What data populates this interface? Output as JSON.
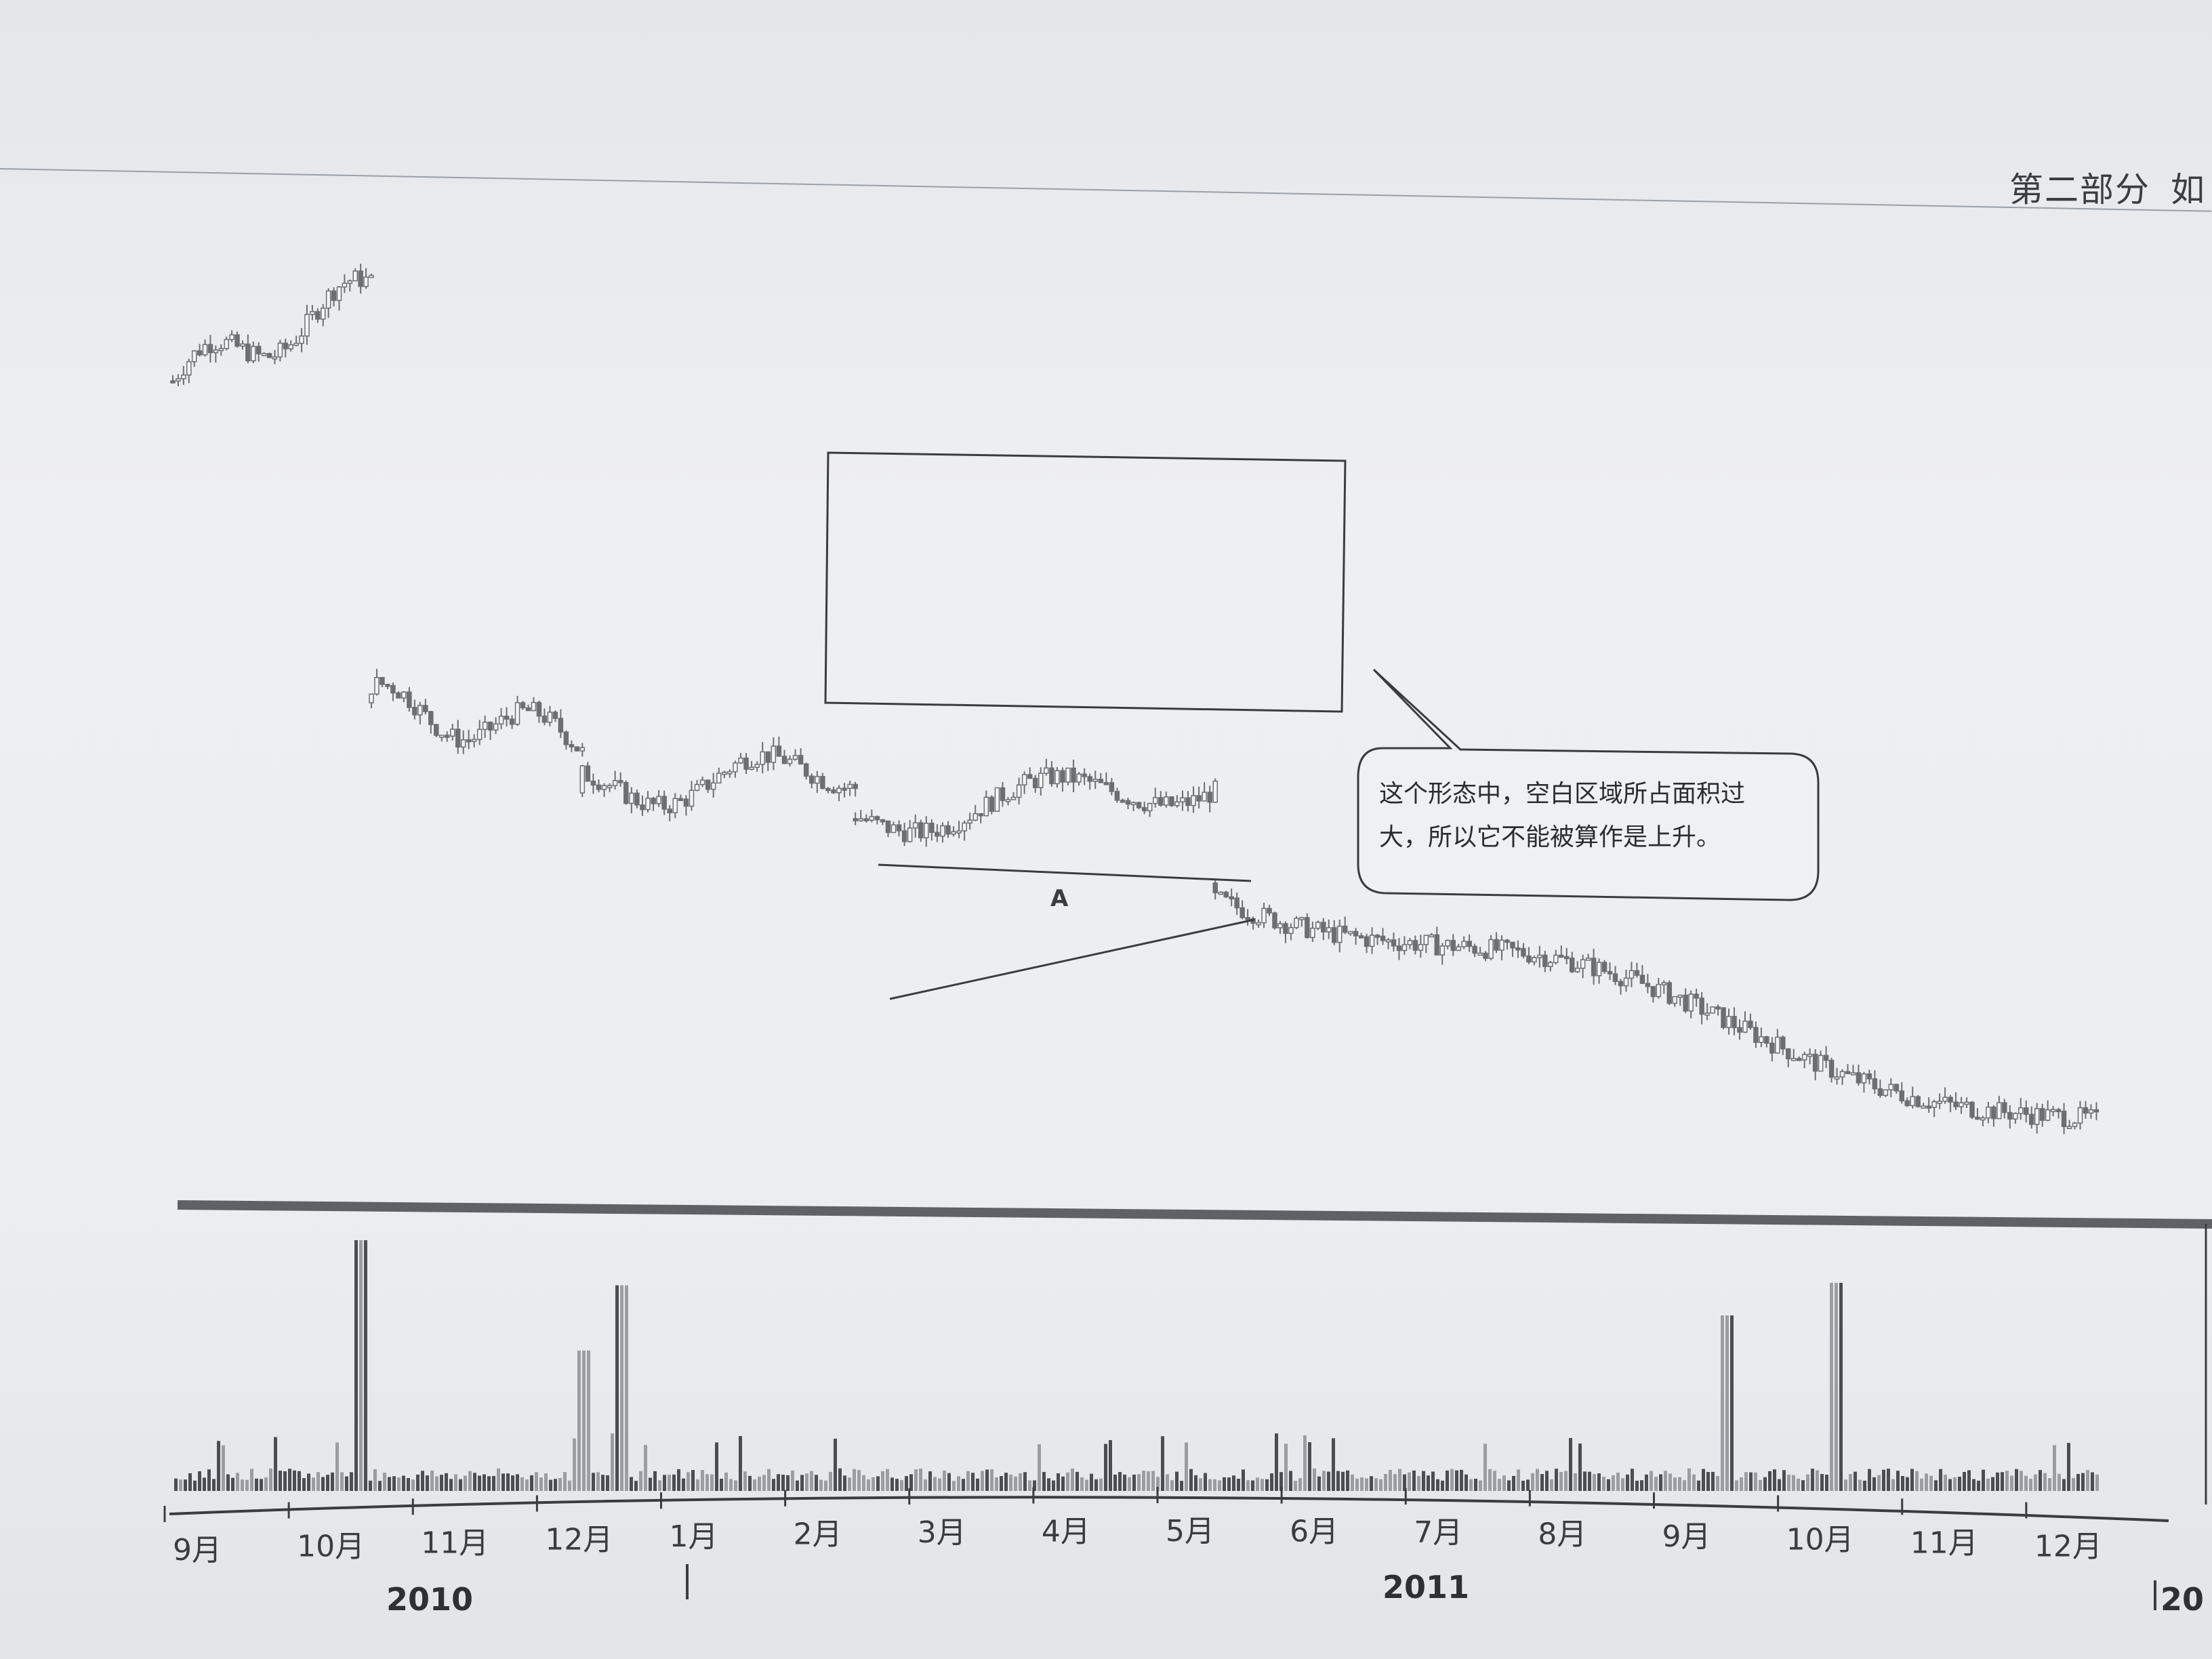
{
  "header": {
    "section": "第二部分",
    "trailing": "如"
  },
  "callout": {
    "line1": "这个形态中，空白区域所占面积过",
    "line2": "大，所以它不能被算作是上升。"
  },
  "pattern_label": "A",
  "chart_data": {
    "type": "candlestick",
    "months": [
      "9月",
      "10月",
      "11月",
      "12月",
      "1月",
      "2月",
      "3月",
      "4月",
      "5月",
      "6月",
      "7月",
      "8月",
      "9月",
      "10月",
      "11月",
      "12月"
    ],
    "years": [
      "2010",
      "2011",
      "20"
    ],
    "price_segments": [
      {
        "from_month": 0,
        "to_month": 1.6,
        "start": 92,
        "end": 99
      },
      {
        "from_month": 1.6,
        "to_month": 3.3,
        "start": 67,
        "end": 64
      },
      {
        "from_month": 3.3,
        "to_month": 5.5,
        "start": 60,
        "end": 62
      },
      {
        "from_month": 5.5,
        "to_month": 8.4,
        "start": 58,
        "end": 61
      },
      {
        "from_month": 8.4,
        "to_month": 15.5,
        "start": 53,
        "end": 34
      }
    ],
    "volume_spikes": [
      {
        "month": 1.5,
        "value": 100
      },
      {
        "month": 3.3,
        "value": 56
      },
      {
        "month": 3.6,
        "value": 82
      },
      {
        "month": 12.5,
        "value": 70
      },
      {
        "month": 13.4,
        "value": 83
      }
    ],
    "grid": false
  },
  "colors": {
    "ink": "#3a3c40",
    "candle": "#6b6e73",
    "volume_dark": "#4a4d52",
    "volume_light": "#9a9da2"
  }
}
